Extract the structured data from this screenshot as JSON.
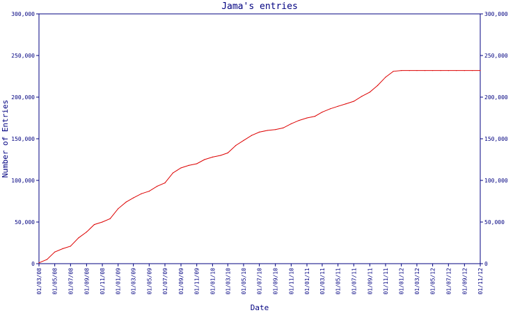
{
  "chart_data": {
    "type": "line",
    "title": "Jama's entries",
    "xlabel": "Date",
    "ylabel": "Number of Entries",
    "ylim": [
      0,
      300000
    ],
    "xlim": [
      "2008-03-01",
      "2012-11-01"
    ],
    "y_ticks": [
      0,
      50000,
      100000,
      150000,
      200000,
      250000,
      300000
    ],
    "y_tick_labels": [
      "0",
      "50,000",
      "100,000",
      "150,000",
      "200,000",
      "250,000",
      "300,000"
    ],
    "x_ticks": [
      "2008-03-01",
      "2008-05-01",
      "2008-07-01",
      "2008-09-01",
      "2008-11-01",
      "2009-01-01",
      "2009-03-01",
      "2009-05-01",
      "2009-07-01",
      "2009-09-01",
      "2009-11-01",
      "2010-01-01",
      "2010-03-01",
      "2010-05-01",
      "2010-07-01",
      "2010-09-01",
      "2010-11-01",
      "2011-01-01",
      "2011-03-01",
      "2011-05-01",
      "2011-07-01",
      "2011-09-01",
      "2011-11-01",
      "2012-01-01",
      "2012-03-01",
      "2012-05-01",
      "2012-07-01",
      "2012-09-01",
      "2012-11-01"
    ],
    "x_tick_labels": [
      "01/03/08",
      "01/05/08",
      "01/07/08",
      "01/09/08",
      "01/11/08",
      "01/01/09",
      "01/03/09",
      "01/05/09",
      "01/07/09",
      "01/09/09",
      "01/11/09",
      "01/01/10",
      "01/03/10",
      "01/05/10",
      "01/07/10",
      "01/09/10",
      "01/11/10",
      "01/01/11",
      "01/03/11",
      "01/05/11",
      "01/07/11",
      "01/09/11",
      "01/11/11",
      "01/01/12",
      "01/03/12",
      "01/05/12",
      "01/07/12",
      "01/09/12",
      "01/11/12"
    ],
    "grid": false,
    "legend": "none",
    "colors": {
      "frame": "#000080",
      "text": "#000080",
      "line": "#dd0000"
    },
    "series": [
      {
        "x": [
          "2008-03-01",
          "2008-04-01",
          "2008-05-01",
          "2008-06-01",
          "2008-07-01",
          "2008-08-01",
          "2008-09-01",
          "2008-10-01",
          "2008-11-01",
          "2008-12-01",
          "2009-01-01",
          "2009-02-01",
          "2009-03-01",
          "2009-04-01",
          "2009-05-01",
          "2009-06-01",
          "2009-07-01",
          "2009-08-01",
          "2009-09-01",
          "2009-10-01",
          "2009-11-01",
          "2009-12-01",
          "2010-01-01",
          "2010-02-01",
          "2010-03-01",
          "2010-04-01",
          "2010-05-01",
          "2010-06-01",
          "2010-07-01",
          "2010-08-01",
          "2010-09-01",
          "2010-10-01",
          "2010-11-01",
          "2010-12-01",
          "2011-01-01",
          "2011-02-01",
          "2011-03-01",
          "2011-04-01",
          "2011-05-01",
          "2011-06-01",
          "2011-07-01",
          "2011-08-01",
          "2011-09-01",
          "2011-10-01",
          "2011-11-01",
          "2011-12-01",
          "2012-01-01",
          "2012-02-01",
          "2012-03-01",
          "2012-04-01",
          "2012-05-01",
          "2012-06-01",
          "2012-07-01",
          "2012-08-01",
          "2012-09-01",
          "2012-10-01",
          "2012-11-01"
        ],
        "values": [
          1000,
          5000,
          14000,
          18000,
          21000,
          31000,
          38000,
          47000,
          50000,
          54000,
          66000,
          74000,
          79000,
          84000,
          87000,
          93000,
          97000,
          109000,
          115000,
          118000,
          120000,
          125000,
          128000,
          130000,
          133000,
          142000,
          148000,
          154000,
          158000,
          160000,
          161000,
          163000,
          168000,
          172000,
          175000,
          177000,
          182000,
          186000,
          189000,
          192000,
          195000,
          201000,
          206000,
          214000,
          224000,
          231000,
          232000,
          232000,
          232000,
          232000,
          232000,
          232000,
          232000,
          232000,
          232000,
          232000,
          232000
        ]
      }
    ]
  }
}
